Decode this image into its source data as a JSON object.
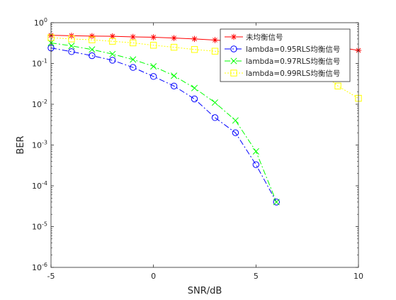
{
  "chart_data": {
    "type": "line",
    "xlabel": "SNR/dB",
    "ylabel": "BER",
    "xlim": [
      -5,
      10
    ],
    "ylim": [
      1e-06,
      1
    ],
    "yscale": "log",
    "grid": false,
    "legend_position": "top-right",
    "x_ticks": [
      -5,
      0,
      5,
      10
    ],
    "y_ticks": [
      {
        "value": 1,
        "base": "10",
        "exp": "0"
      },
      {
        "value": 0.1,
        "base": "10",
        "exp": "-1"
      },
      {
        "value": 0.01,
        "base": "10",
        "exp": "-2"
      },
      {
        "value": 0.001,
        "base": "10",
        "exp": "-3"
      },
      {
        "value": 0.0001,
        "base": "10",
        "exp": "-4"
      },
      {
        "value": 1e-05,
        "base": "10",
        "exp": "-5"
      },
      {
        "value": 1e-06,
        "base": "10",
        "exp": "-6"
      }
    ],
    "series": [
      {
        "name": "未均衡信号",
        "color": "#ff0000",
        "marker": "star",
        "linestyle": "solid",
        "x": [
          -5,
          -4,
          -3,
          -2,
          -1,
          0,
          1,
          2,
          3,
          4,
          5,
          6,
          7,
          8,
          9,
          10
        ],
        "y": [
          0.49,
          0.48,
          0.47,
          0.465,
          0.45,
          0.44,
          0.42,
          0.4,
          0.375,
          0.35,
          0.33,
          0.31,
          0.29,
          0.27,
          0.25,
          0.21
        ]
      },
      {
        "name": "lambda=0.95RLS均衡信号",
        "color": "#0000ff",
        "marker": "circle",
        "linestyle": "dashdot",
        "x": [
          -5,
          -4,
          -3,
          -2,
          -1,
          0,
          1,
          2,
          3,
          4,
          5,
          6
        ],
        "y": [
          0.24,
          0.195,
          0.155,
          0.12,
          0.08,
          0.048,
          0.028,
          0.0135,
          0.0047,
          0.002,
          0.00033,
          4e-05
        ]
      },
      {
        "name": "lambda=0.97RLS均衡信号",
        "color": "#00ff00",
        "marker": "x",
        "linestyle": "dashdot",
        "x": [
          -5,
          -4,
          -3,
          -2,
          -1,
          0,
          1,
          2,
          3,
          4,
          5,
          6
        ],
        "y": [
          0.32,
          0.27,
          0.22,
          0.17,
          0.125,
          0.085,
          0.05,
          0.025,
          0.011,
          0.004,
          0.0007,
          4e-05
        ]
      },
      {
        "name": "lambda=0.99RLS均衡信号",
        "color": "#ffff00",
        "marker": "square",
        "linestyle": "dotted",
        "x": [
          -5,
          -4,
          -3,
          -2,
          -1,
          0,
          1,
          2,
          3,
          4,
          5,
          6,
          7,
          8,
          9,
          10
        ],
        "y": [
          0.43,
          0.4,
          0.38,
          0.35,
          0.32,
          0.28,
          0.25,
          0.22,
          0.2,
          0.18,
          0.16,
          0.135,
          0.105,
          0.075,
          0.028,
          0.014
        ]
      }
    ]
  }
}
